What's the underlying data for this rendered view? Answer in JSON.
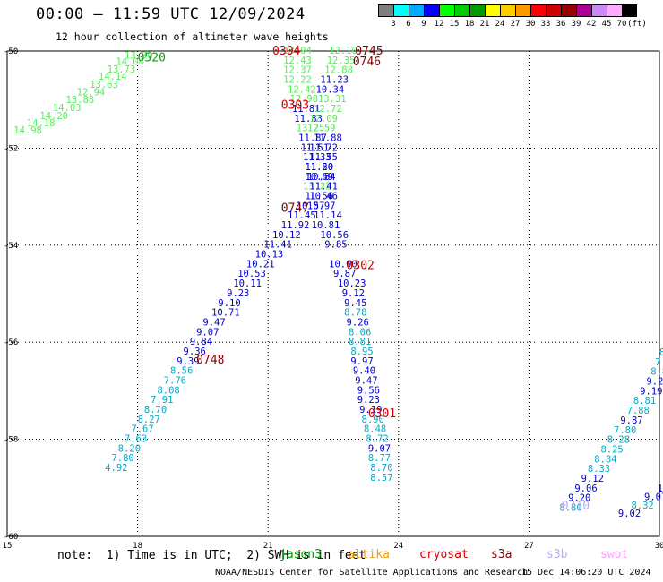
{
  "header": {
    "title": "00:00 – 11:59 UTC 12/09/2024",
    "subtitle": "12 hour collection of altimeter wave heights"
  },
  "color_scale": {
    "colors": [
      "#7f7f7f",
      "#00ffff",
      "#00aaff",
      "#0000ff",
      "#00ff00",
      "#00cc00",
      "#009900",
      "#ffff00",
      "#ffcc00",
      "#ff9900",
      "#ff0000",
      "#cc0000",
      "#990000",
      "#aa0099",
      "#cc88ff",
      "#ffaaff",
      "#000000"
    ],
    "labels": [
      "3",
      "6",
      "9",
      "12",
      "15",
      "18",
      "21",
      "24",
      "27",
      "30",
      "33",
      "36",
      "39",
      "42",
      "45",
      "70",
      "(ft)"
    ]
  },
  "chart_data": {
    "type": "scatter",
    "xlim": [
      15,
      30
    ],
    "ylim": [
      -60,
      -50
    ],
    "xticks": [
      "15",
      "18",
      "21",
      "24",
      "27",
      "30"
    ],
    "yticks": [
      "-50",
      "-52",
      "-54",
      "-56",
      "-58",
      "-60"
    ],
    "grid": true,
    "points": [
      {
        "x": 15.15,
        "y": -51.62,
        "v": "14.98",
        "c": "#55ee55"
      },
      {
        "x": 15.45,
        "y": -51.48,
        "v": "14.18",
        "c": "#55ee55"
      },
      {
        "x": 15.75,
        "y": -51.33,
        "v": "14.20",
        "c": "#55ee55"
      },
      {
        "x": 16.05,
        "y": -51.16,
        "v": "14.03",
        "c": "#55ee55"
      },
      {
        "x": 16.35,
        "y": -51.0,
        "v": "13.88",
        "c": "#55ee55"
      },
      {
        "x": 16.6,
        "y": -50.84,
        "v": "12.94",
        "c": "#55ee55"
      },
      {
        "x": 16.9,
        "y": -50.68,
        "v": "13.63",
        "c": "#55ee55"
      },
      {
        "x": 17.1,
        "y": -50.52,
        "v": "14.14",
        "c": "#55ee55"
      },
      {
        "x": 17.3,
        "y": -50.37,
        "v": "13.73",
        "c": "#55ee55"
      },
      {
        "x": 17.5,
        "y": -50.21,
        "v": "14.04",
        "c": "#55ee55"
      },
      {
        "x": 17.7,
        "y": -50.08,
        "v": "13.30",
        "c": "#55ee55"
      },
      {
        "x": 21.35,
        "y": -49.98,
        "v": "13.94",
        "c": "#55ee55"
      },
      {
        "x": 21.35,
        "y": -50.18,
        "v": "12.43",
        "c": "#55ee55"
      },
      {
        "x": 21.35,
        "y": -50.38,
        "v": "12.37",
        "c": "#55ee55"
      },
      {
        "x": 21.35,
        "y": -50.58,
        "v": "12.22",
        "c": "#55ee55"
      },
      {
        "x": 21.45,
        "y": -50.78,
        "v": "12.42",
        "c": "#55ee55"
      },
      {
        "x": 21.5,
        "y": -50.98,
        "v": "12.98",
        "c": "#55ee55"
      },
      {
        "x": 21.55,
        "y": -51.18,
        "v": "11.81",
        "c": "#0000cc"
      },
      {
        "x": 21.6,
        "y": -51.38,
        "v": "11.83",
        "c": "#0000cc"
      },
      {
        "x": 21.65,
        "y": -51.58,
        "v": "13.25",
        "c": "#55ee55"
      },
      {
        "x": 21.7,
        "y": -51.78,
        "v": "11.87",
        "c": "#0000cc"
      },
      {
        "x": 21.75,
        "y": -51.98,
        "v": "11.51",
        "c": "#0000cc"
      },
      {
        "x": 21.8,
        "y": -52.18,
        "v": "11.33",
        "c": "#0000cc"
      },
      {
        "x": 21.85,
        "y": -52.38,
        "v": "11.50",
        "c": "#0000cc"
      },
      {
        "x": 21.9,
        "y": -52.58,
        "v": "10.84",
        "c": "#0000cc"
      },
      {
        "x": 21.8,
        "y": -52.78,
        "v": "13.22",
        "c": "#55ee55"
      },
      {
        "x": 21.85,
        "y": -52.98,
        "v": "11.56",
        "c": "#0000cc"
      },
      {
        "x": 21.65,
        "y": -53.18,
        "v": "10.57",
        "c": "#0000cc"
      },
      {
        "x": 21.45,
        "y": -53.38,
        "v": "11.45",
        "c": "#0000cc"
      },
      {
        "x": 21.3,
        "y": -53.58,
        "v": "11.92",
        "c": "#0000cc"
      },
      {
        "x": 21.1,
        "y": -53.78,
        "v": "10.12",
        "c": "#0000cc"
      },
      {
        "x": 20.9,
        "y": -53.98,
        "v": "11.41",
        "c": "#0000cc"
      },
      {
        "x": 20.7,
        "y": -54.18,
        "v": "10.13",
        "c": "#0000cc"
      },
      {
        "x": 20.5,
        "y": -54.38,
        "v": "10.21",
        "c": "#0000cc"
      },
      {
        "x": 20.3,
        "y": -54.58,
        "v": "10.53",
        "c": "#0000cc"
      },
      {
        "x": 20.2,
        "y": -54.78,
        "v": "10.11",
        "c": "#0000cc"
      },
      {
        "x": 20.05,
        "y": -54.98,
        "v": "9.23",
        "c": "#0000cc"
      },
      {
        "x": 19.85,
        "y": -55.18,
        "v": "9.10",
        "c": "#0000cc"
      },
      {
        "x": 19.7,
        "y": -55.38,
        "v": "10.71",
        "c": "#0000cc"
      },
      {
        "x": 19.5,
        "y": -55.58,
        "v": "9.47",
        "c": "#0000cc"
      },
      {
        "x": 19.35,
        "y": -55.78,
        "v": "9.07",
        "c": "#0000cc"
      },
      {
        "x": 19.2,
        "y": -55.98,
        "v": "9.84",
        "c": "#0000cc"
      },
      {
        "x": 19.05,
        "y": -56.18,
        "v": "9.36",
        "c": "#0000cc"
      },
      {
        "x": 18.9,
        "y": -56.38,
        "v": "9.39",
        "c": "#0000cc"
      },
      {
        "x": 18.75,
        "y": -56.58,
        "v": "8.56",
        "c": "#00aacc"
      },
      {
        "x": 18.6,
        "y": -56.78,
        "v": "7.76",
        "c": "#00aacc"
      },
      {
        "x": 18.45,
        "y": -56.98,
        "v": "8.08",
        "c": "#00aacc"
      },
      {
        "x": 18.3,
        "y": -57.18,
        "v": "7.91",
        "c": "#00aacc"
      },
      {
        "x": 18.15,
        "y": -57.38,
        "v": "8.70",
        "c": "#00aacc"
      },
      {
        "x": 18.0,
        "y": -57.58,
        "v": "8.27",
        "c": "#00aacc"
      },
      {
        "x": 17.85,
        "y": -57.78,
        "v": "7.67",
        "c": "#00aacc"
      },
      {
        "x": 17.7,
        "y": -57.98,
        "v": "7.63",
        "c": "#00aacc"
      },
      {
        "x": 17.55,
        "y": -58.18,
        "v": "8.20",
        "c": "#00aacc"
      },
      {
        "x": 17.4,
        "y": -58.38,
        "v": "7.80",
        "c": "#00aacc"
      },
      {
        "x": 17.25,
        "y": -58.58,
        "v": "4.92",
        "c": "#00aacc"
      },
      {
        "x": 22.4,
        "y": -49.98,
        "v": "12.10",
        "c": "#55ee55"
      },
      {
        "x": 22.35,
        "y": -50.18,
        "v": "12.35",
        "c": "#55ee55"
      },
      {
        "x": 22.3,
        "y": -50.38,
        "v": "12.88",
        "c": "#55ee55"
      },
      {
        "x": 22.2,
        "y": -50.58,
        "v": "11.23",
        "c": "#0000cc"
      },
      {
        "x": 22.1,
        "y": -50.78,
        "v": "10.34",
        "c": "#0000cc"
      },
      {
        "x": 22.15,
        "y": -50.98,
        "v": "13.31",
        "c": "#55ee55"
      },
      {
        "x": 22.05,
        "y": -51.18,
        "v": "12.72",
        "c": "#55ee55"
      },
      {
        "x": 21.95,
        "y": -51.38,
        "v": "12.09",
        "c": "#55ee55"
      },
      {
        "x": 21.9,
        "y": -51.58,
        "v": "12.59",
        "c": "#55ee55"
      },
      {
        "x": 22.05,
        "y": -51.78,
        "v": "11.88",
        "c": "#0000cc"
      },
      {
        "x": 21.95,
        "y": -51.98,
        "v": "11.72",
        "c": "#0000cc"
      },
      {
        "x": 21.95,
        "y": -52.18,
        "v": "11.55",
        "c": "#0000cc"
      },
      {
        "x": 21.85,
        "y": -52.38,
        "v": "11.20",
        "c": "#0000cc"
      },
      {
        "x": 21.85,
        "y": -52.58,
        "v": "10.69",
        "c": "#0000cc"
      },
      {
        "x": 21.95,
        "y": -52.78,
        "v": "11.41",
        "c": "#0000cc"
      },
      {
        "x": 21.95,
        "y": -52.98,
        "v": "10.46",
        "c": "#0000cc"
      },
      {
        "x": 21.9,
        "y": -53.18,
        "v": "10.97",
        "c": "#0000cc"
      },
      {
        "x": 22.05,
        "y": -53.38,
        "v": "11.14",
        "c": "#0000cc"
      },
      {
        "x": 22.0,
        "y": -53.58,
        "v": "10.81",
        "c": "#0000cc"
      },
      {
        "x": 22.2,
        "y": -53.78,
        "v": "10.56",
        "c": "#0000cc"
      },
      {
        "x": 22.3,
        "y": -53.98,
        "v": "9.85",
        "c": "#0000cc"
      },
      {
        "x": 22.4,
        "y": -54.38,
        "v": "10.00",
        "c": "#0000cc"
      },
      {
        "x": 22.5,
        "y": -54.58,
        "v": "9.87",
        "c": "#0000cc"
      },
      {
        "x": 22.6,
        "y": -54.78,
        "v": "10.23",
        "c": "#0000cc"
      },
      {
        "x": 22.7,
        "y": -54.98,
        "v": "9.12",
        "c": "#0000cc"
      },
      {
        "x": 22.75,
        "y": -55.18,
        "v": "9.45",
        "c": "#0000cc"
      },
      {
        "x": 22.75,
        "y": -55.38,
        "v": "8.78",
        "c": "#00aacc"
      },
      {
        "x": 22.8,
        "y": -55.58,
        "v": "9.26",
        "c": "#0000cc"
      },
      {
        "x": 22.85,
        "y": -55.78,
        "v": "8.06",
        "c": "#00aacc"
      },
      {
        "x": 22.85,
        "y": -55.98,
        "v": "8.81",
        "c": "#00aacc"
      },
      {
        "x": 22.9,
        "y": -56.18,
        "v": "8.95",
        "c": "#00aacc"
      },
      {
        "x": 22.9,
        "y": -56.38,
        "v": "9.97",
        "c": "#0000cc"
      },
      {
        "x": 22.95,
        "y": -56.58,
        "v": "9.40",
        "c": "#0000cc"
      },
      {
        "x": 23.0,
        "y": -56.78,
        "v": "9.47",
        "c": "#0000cc"
      },
      {
        "x": 23.05,
        "y": -56.98,
        "v": "9.56",
        "c": "#0000cc"
      },
      {
        "x": 23.05,
        "y": -57.18,
        "v": "9.23",
        "c": "#0000cc"
      },
      {
        "x": 23.1,
        "y": -57.38,
        "v": "9.19",
        "c": "#0000cc"
      },
      {
        "x": 23.15,
        "y": -57.58,
        "v": "8.90",
        "c": "#00aacc"
      },
      {
        "x": 23.2,
        "y": -57.78,
        "v": "8.48",
        "c": "#00aacc"
      },
      {
        "x": 23.25,
        "y": -57.98,
        "v": "8.72",
        "c": "#00aacc"
      },
      {
        "x": 23.3,
        "y": -58.18,
        "v": "9.07",
        "c": "#0000cc"
      },
      {
        "x": 23.3,
        "y": -58.38,
        "v": "8.77",
        "c": "#00aacc"
      },
      {
        "x": 23.35,
        "y": -58.58,
        "v": "8.70",
        "c": "#00aacc"
      },
      {
        "x": 23.35,
        "y": -58.78,
        "v": "8.57",
        "c": "#00aacc"
      },
      {
        "x": 30.1,
        "y": -56.0,
        "v": "8.",
        "c": "#00aacc"
      },
      {
        "x": 30.0,
        "y": -56.2,
        "v": "8.",
        "c": "#00aacc"
      },
      {
        "x": 29.9,
        "y": -56.4,
        "v": "7.6",
        "c": "#00aacc"
      },
      {
        "x": 29.8,
        "y": -56.6,
        "v": "8.86",
        "c": "#00aacc"
      },
      {
        "x": 29.7,
        "y": -56.8,
        "v": "9.29",
        "c": "#0000cc"
      },
      {
        "x": 29.55,
        "y": -57.0,
        "v": "9.19",
        "c": "#0000cc"
      },
      {
        "x": 29.4,
        "y": -57.2,
        "v": "8.81",
        "c": "#00aacc"
      },
      {
        "x": 29.25,
        "y": -57.4,
        "v": "7.88",
        "c": "#00aacc"
      },
      {
        "x": 29.1,
        "y": -57.6,
        "v": "9.87",
        "c": "#0000cc"
      },
      {
        "x": 28.95,
        "y": -57.8,
        "v": "7.80",
        "c": "#00aacc"
      },
      {
        "x": 28.8,
        "y": -58.0,
        "v": "8.28",
        "c": "#00aacc"
      },
      {
        "x": 28.65,
        "y": -58.2,
        "v": "8.25",
        "c": "#00aacc"
      },
      {
        "x": 28.5,
        "y": -58.4,
        "v": "8.84",
        "c": "#00aacc"
      },
      {
        "x": 28.35,
        "y": -58.6,
        "v": "8.33",
        "c": "#00aacc"
      },
      {
        "x": 28.2,
        "y": -58.8,
        "v": "9.12",
        "c": "#0000cc"
      },
      {
        "x": 28.05,
        "y": -59.0,
        "v": "9.06",
        "c": "#0000cc"
      },
      {
        "x": 27.9,
        "y": -59.2,
        "v": "9.20",
        "c": "#0000cc"
      },
      {
        "x": 27.7,
        "y": -59.4,
        "v": "8.80",
        "c": "#00aacc"
      },
      {
        "x": 29.05,
        "y": -59.52,
        "v": "9.02",
        "c": "#0000cc"
      },
      {
        "x": 29.35,
        "y": -59.35,
        "v": "8.32",
        "c": "#00aacc"
      },
      {
        "x": 29.65,
        "y": -59.18,
        "v": "9.07",
        "c": "#0000cc"
      },
      {
        "x": 29.95,
        "y": -59.0,
        "v": "10.0",
        "c": "#0000cc"
      },
      {
        "x": 30.15,
        "y": -58.85,
        "v": "8",
        "c": "#00aacc"
      }
    ],
    "annotations": [
      {
        "x": 18.0,
        "y": -50.12,
        "text": "0520",
        "c": "#00aa00"
      },
      {
        "x": 21.1,
        "y": -49.98,
        "text": "0304",
        "c": "#cc0000"
      },
      {
        "x": 23.0,
        "y": -49.98,
        "text": "0745",
        "c": "#880000"
      },
      {
        "x": 22.95,
        "y": -50.2,
        "text": "0746",
        "c": "#880000"
      },
      {
        "x": 21.3,
        "y": -51.1,
        "text": "0303",
        "c": "#cc0000"
      },
      {
        "x": 21.3,
        "y": -53.22,
        "text": "0747",
        "c": "#880000"
      },
      {
        "x": 22.8,
        "y": -54.4,
        "text": "0302",
        "c": "#cc0000"
      },
      {
        "x": 19.35,
        "y": -56.35,
        "text": "0748",
        "c": "#880000"
      },
      {
        "x": 23.3,
        "y": -57.45,
        "text": "0301",
        "c": "#cc0000"
      },
      {
        "x": 27.75,
        "y": -59.35,
        "text": "0710",
        "c": "#bbaaee"
      }
    ]
  },
  "footer": {
    "note": "note:  1) Time is in UTC;  2) SWH is in feet",
    "legend": [
      {
        "label": "jason3",
        "color": "#009900"
      },
      {
        "label": "altika",
        "color": "#ff9900"
      },
      {
        "label": "cryosat",
        "color": "#dd0000"
      },
      {
        "label": "s3a",
        "color": "#880000"
      },
      {
        "label": "s3b",
        "color": "#bbaaee"
      },
      {
        "label": "swot",
        "color": "#ff99ff"
      }
    ],
    "credit": "NOAA/NESDIS Center for Satellite Applications and Research",
    "timestamp": "15 Dec 14:06:20 UTC 2024"
  }
}
